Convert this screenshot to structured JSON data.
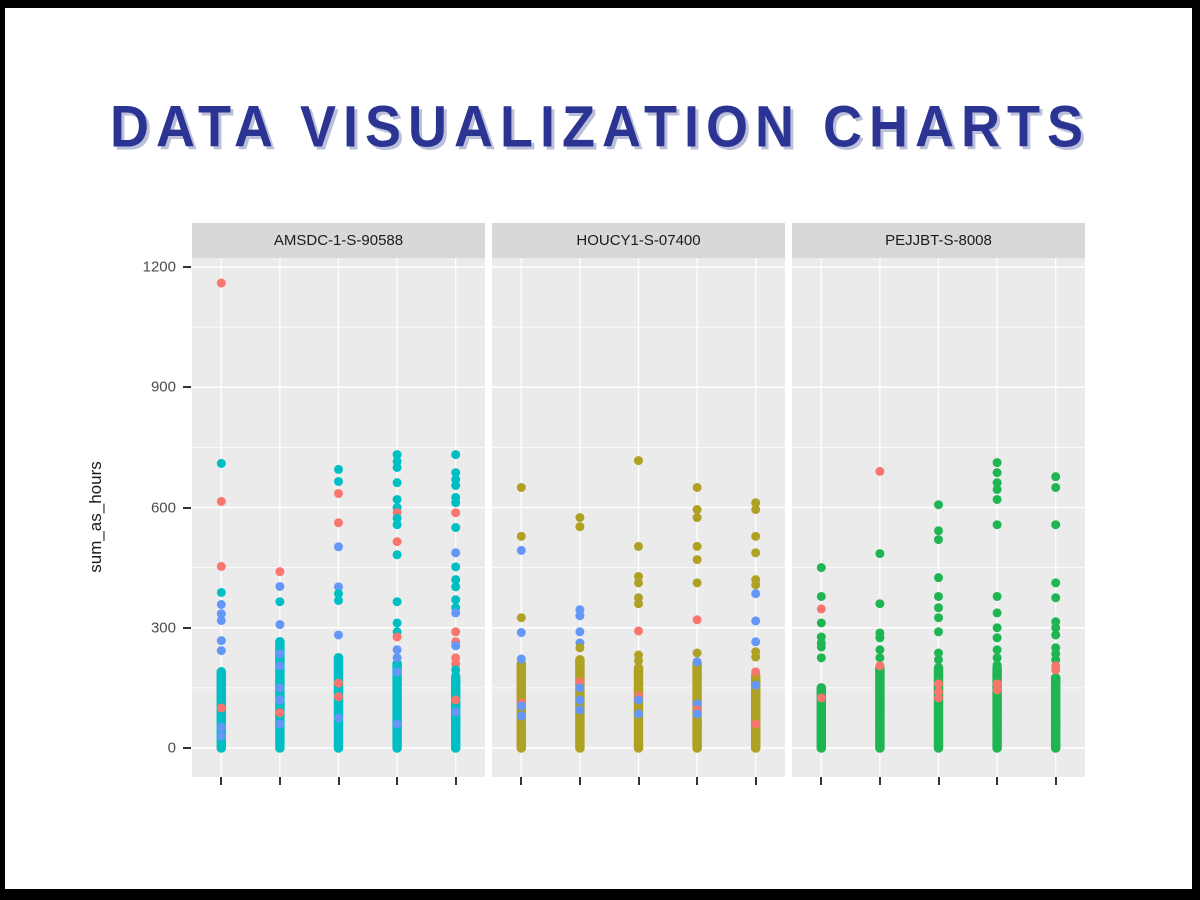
{
  "title": "DATA VISUALIZATION CHARTS",
  "colors": {
    "title": "#2b3492",
    "border": "#000000",
    "panel_bg": "#ebebeb",
    "strip_bg": "#d8d8d8",
    "grid": "#ffffff"
  },
  "palette": {
    "r": "#F8766D",
    "t": "#00BFC4",
    "o": "#AFA123",
    "g": "#1FB552",
    "b": "#6497F7"
  },
  "chart_data": {
    "type": "scatter",
    "title": "",
    "xlabel": "",
    "ylabel": "sum_as_hours",
    "yticks": [
      0,
      300,
      600,
      900,
      1200
    ],
    "ylim": [
      -75,
      1225
    ],
    "grid": "on",
    "legend": "none",
    "x_tick_labels": [
      "",
      "",
      "",
      "",
      ""
    ],
    "facets": [
      {
        "label": "AMSDC-1-S-90588",
        "dominant_color": "t",
        "columns": [
          {
            "dense": {
              "from": 0,
              "to": 190,
              "color": "t"
            },
            "points": [
              [
                1160,
                "r"
              ],
              [
                710,
                "t"
              ],
              [
                615,
                "r"
              ],
              [
                453,
                "r"
              ],
              [
                388,
                "t"
              ],
              [
                358,
                "b"
              ],
              [
                335,
                "b"
              ],
              [
                318,
                "b"
              ],
              [
                268,
                "b"
              ],
              [
                243,
                "b"
              ],
              [
                100,
                "r"
              ],
              [
                52,
                "b"
              ],
              [
                30,
                "b"
              ]
            ]
          },
          {
            "dense": {
              "from": 0,
              "to": 265,
              "color": "t"
            },
            "points": [
              [
                440,
                "r"
              ],
              [
                403,
                "b"
              ],
              [
                365,
                "t"
              ],
              [
                308,
                "b"
              ],
              [
                235,
                "b"
              ],
              [
                205,
                "b"
              ],
              [
                150,
                "b"
              ],
              [
                120,
                "b"
              ],
              [
                88,
                "r"
              ],
              [
                60,
                "b"
              ]
            ]
          },
          {
            "dense": {
              "from": 0,
              "to": 225,
              "color": "t"
            },
            "points": [
              [
                695,
                "t"
              ],
              [
                665,
                "t"
              ],
              [
                635,
                "r"
              ],
              [
                562,
                "r"
              ],
              [
                502,
                "b"
              ],
              [
                402,
                "b"
              ],
              [
                385,
                "t"
              ],
              [
                368,
                "t"
              ],
              [
                282,
                "b"
              ],
              [
                162,
                "r"
              ],
              [
                128,
                "r"
              ],
              [
                75,
                "b"
              ]
            ]
          },
          {
            "dense": {
              "from": 0,
              "to": 212,
              "color": "t"
            },
            "points": [
              [
                732,
                "t"
              ],
              [
                715,
                "t"
              ],
              [
                700,
                "t"
              ],
              [
                662,
                "t"
              ],
              [
                620,
                "t"
              ],
              [
                600,
                "t"
              ],
              [
                587,
                "r"
              ],
              [
                573,
                "t"
              ],
              [
                557,
                "t"
              ],
              [
                515,
                "r"
              ],
              [
                482,
                "t"
              ],
              [
                365,
                "t"
              ],
              [
                312,
                "t"
              ],
              [
                290,
                "t"
              ],
              [
                277,
                "r"
              ],
              [
                245,
                "b"
              ],
              [
                225,
                "b"
              ],
              [
                190,
                "b"
              ],
              [
                60,
                "b"
              ]
            ]
          },
          {
            "dense": {
              "from": 0,
              "to": 175,
              "color": "t"
            },
            "points": [
              [
                732,
                "t"
              ],
              [
                687,
                "t"
              ],
              [
                670,
                "t"
              ],
              [
                655,
                "t"
              ],
              [
                625,
                "t"
              ],
              [
                612,
                "t"
              ],
              [
                587,
                "r"
              ],
              [
                550,
                "t"
              ],
              [
                487,
                "b"
              ],
              [
                452,
                "t"
              ],
              [
                420,
                "t"
              ],
              [
                402,
                "t"
              ],
              [
                370,
                "t"
              ],
              [
                350,
                "t"
              ],
              [
                337,
                "b"
              ],
              [
                290,
                "r"
              ],
              [
                265,
                "r"
              ],
              [
                255,
                "b"
              ],
              [
                225,
                "r"
              ],
              [
                210,
                "r"
              ],
              [
                195,
                "t"
              ],
              [
                180,
                "t"
              ],
              [
                120,
                "r"
              ],
              [
                90,
                "b"
              ]
            ]
          }
        ]
      },
      {
        "label": "HOUCY1-S-07400",
        "dominant_color": "o",
        "columns": [
          {
            "dense": {
              "from": 0,
              "to": 210,
              "color": "o"
            },
            "points": [
              [
                650,
                "o"
              ],
              [
                528,
                "o"
              ],
              [
                493,
                "b"
              ],
              [
                325,
                "o"
              ],
              [
                288,
                "b"
              ],
              [
                222,
                "b"
              ],
              [
                112,
                "r"
              ],
              [
                105,
                "b"
              ],
              [
                80,
                "b"
              ]
            ]
          },
          {
            "dense": {
              "from": 0,
              "to": 220,
              "color": "o"
            },
            "points": [
              [
                575,
                "o"
              ],
              [
                552,
                "o"
              ],
              [
                345,
                "b"
              ],
              [
                330,
                "b"
              ],
              [
                290,
                "b"
              ],
              [
                262,
                "b"
              ],
              [
                250,
                "o"
              ],
              [
                165,
                "r"
              ],
              [
                150,
                "b"
              ],
              [
                120,
                "b"
              ],
              [
                95,
                "b"
              ]
            ]
          },
          {
            "dense": {
              "from": 0,
              "to": 200,
              "color": "o"
            },
            "points": [
              [
                717,
                "o"
              ],
              [
                503,
                "o"
              ],
              [
                428,
                "o"
              ],
              [
                412,
                "o"
              ],
              [
                375,
                "o"
              ],
              [
                360,
                "o"
              ],
              [
                292,
                "r"
              ],
              [
                232,
                "o"
              ],
              [
                218,
                "o"
              ],
              [
                130,
                "r"
              ],
              [
                120,
                "b"
              ],
              [
                85,
                "b"
              ]
            ]
          },
          {
            "dense": {
              "from": 0,
              "to": 212,
              "color": "o"
            },
            "points": [
              [
                650,
                "o"
              ],
              [
                595,
                "o"
              ],
              [
                575,
                "o"
              ],
              [
                503,
                "o"
              ],
              [
                470,
                "o"
              ],
              [
                412,
                "o"
              ],
              [
                320,
                "r"
              ],
              [
                237,
                "o"
              ],
              [
                215,
                "b"
              ],
              [
                110,
                "b"
              ],
              [
                95,
                "r"
              ],
              [
                85,
                "b"
              ]
            ]
          },
          {
            "dense": {
              "from": 0,
              "to": 180,
              "color": "o"
            },
            "points": [
              [
                612,
                "o"
              ],
              [
                595,
                "o"
              ],
              [
                528,
                "o"
              ],
              [
                487,
                "o"
              ],
              [
                420,
                "o"
              ],
              [
                407,
                "o"
              ],
              [
                385,
                "b"
              ],
              [
                317,
                "b"
              ],
              [
                265,
                "b"
              ],
              [
                240,
                "o"
              ],
              [
                227,
                "o"
              ],
              [
                190,
                "r"
              ],
              [
                157,
                "b"
              ],
              [
                60,
                "r"
              ]
            ]
          }
        ]
      },
      {
        "label": "PEJJBT-S-8008",
        "dominant_color": "g",
        "columns": [
          {
            "dense": {
              "from": 0,
              "to": 152,
              "color": "g"
            },
            "points": [
              [
                450,
                "g"
              ],
              [
                378,
                "g"
              ],
              [
                347,
                "r"
              ],
              [
                312,
                "g"
              ],
              [
                277,
                "g"
              ],
              [
                262,
                "g"
              ],
              [
                252,
                "g"
              ],
              [
                225,
                "g"
              ],
              [
                125,
                "r"
              ]
            ]
          },
          {
            "dense": {
              "from": 0,
              "to": 200,
              "color": "g"
            },
            "points": [
              [
                690,
                "r"
              ],
              [
                485,
                "g"
              ],
              [
                360,
                "g"
              ],
              [
                287,
                "g"
              ],
              [
                275,
                "g"
              ],
              [
                245,
                "g"
              ],
              [
                225,
                "g"
              ],
              [
                205,
                "r"
              ]
            ]
          },
          {
            "dense": {
              "from": 0,
              "to": 200,
              "color": "g"
            },
            "points": [
              [
                607,
                "g"
              ],
              [
                542,
                "g"
              ],
              [
                520,
                "g"
              ],
              [
                425,
                "g"
              ],
              [
                378,
                "g"
              ],
              [
                350,
                "g"
              ],
              [
                325,
                "g"
              ],
              [
                290,
                "g"
              ],
              [
                237,
                "g"
              ],
              [
                220,
                "g"
              ],
              [
                160,
                "r"
              ],
              [
                140,
                "r"
              ],
              [
                125,
                "r"
              ]
            ]
          },
          {
            "dense": {
              "from": 0,
              "to": 200,
              "color": "g"
            },
            "points": [
              [
                712,
                "g"
              ],
              [
                687,
                "g"
              ],
              [
                662,
                "g"
              ],
              [
                645,
                "g"
              ],
              [
                620,
                "g"
              ],
              [
                557,
                "g"
              ],
              [
                378,
                "g"
              ],
              [
                337,
                "g"
              ],
              [
                300,
                "g"
              ],
              [
                275,
                "g"
              ],
              [
                245,
                "g"
              ],
              [
                225,
                "g"
              ],
              [
                207,
                "g"
              ],
              [
                160,
                "r"
              ],
              [
                145,
                "r"
              ]
            ]
          },
          {
            "dense": {
              "from": 0,
              "to": 177,
              "color": "g"
            },
            "points": [
              [
                677,
                "g"
              ],
              [
                650,
                "g"
              ],
              [
                557,
                "g"
              ],
              [
                412,
                "g"
              ],
              [
                375,
                "g"
              ],
              [
                315,
                "g"
              ],
              [
                300,
                "g"
              ],
              [
                282,
                "g"
              ],
              [
                250,
                "g"
              ],
              [
                235,
                "g"
              ],
              [
                220,
                "g"
              ],
              [
                205,
                "r"
              ],
              [
                195,
                "r"
              ]
            ]
          }
        ]
      }
    ]
  }
}
